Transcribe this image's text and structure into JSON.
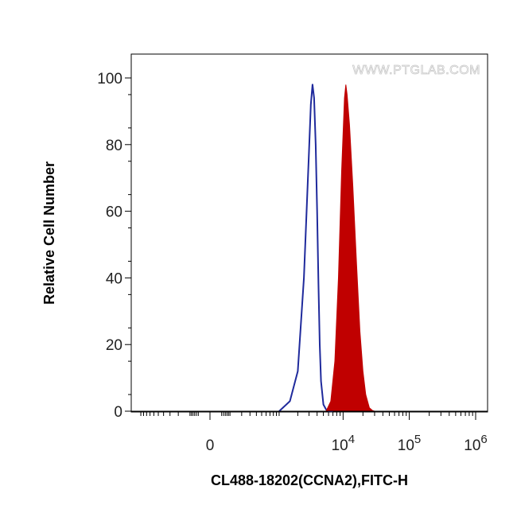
{
  "chart_data": {
    "type": "area",
    "title": "",
    "xlabel": "CL488-18202(CCNA2),FITC-H",
    "ylabel": "Relative Cell Number",
    "watermark": "WWW.PTGLAB.COM",
    "x_scale": "biexponential",
    "ylim": [
      0,
      100
    ],
    "y_ticks": [
      {
        "value": 0,
        "label": "0"
      },
      {
        "value": 20,
        "label": "20"
      },
      {
        "value": 40,
        "label": "40"
      },
      {
        "value": 60,
        "label": "60"
      },
      {
        "value": 80,
        "label": "80"
      },
      {
        "value": 100,
        "label": "100"
      }
    ],
    "x_ticks": [
      {
        "value": 0,
        "base": "0",
        "exp": ""
      },
      {
        "value": 10000,
        "base": "10",
        "exp": "4"
      },
      {
        "value": 100000,
        "base": "10",
        "exp": "5"
      },
      {
        "value": 1000000,
        "base": "10",
        "exp": "6"
      }
    ],
    "grid": false,
    "legend": "none",
    "series": [
      {
        "style": "outline",
        "color": "#1f2a9c",
        "x": [
          1000,
          1500,
          2000,
          2500,
          3000,
          3200,
          3400,
          3600,
          3800,
          4000,
          4200,
          4400,
          4600,
          5000,
          5500,
          6000,
          7000
        ],
        "y": [
          0,
          3,
          12,
          40,
          78,
          92,
          98,
          94,
          80,
          60,
          38,
          20,
          9,
          2,
          0.5,
          0,
          0
        ]
      },
      {
        "style": "filled",
        "color": "#c00000",
        "x": [
          5500,
          6500,
          7500,
          8500,
          9500,
          10500,
          11000,
          11500,
          12500,
          14000,
          16000,
          18000,
          20000,
          22000,
          25000,
          28000,
          30000
        ],
        "y": [
          0,
          3,
          15,
          40,
          72,
          94,
          98,
          95,
          86,
          68,
          44,
          24,
          12,
          5,
          1,
          0.2,
          0
        ]
      }
    ],
    "colors": {
      "outline_series": "#1f2a9c",
      "filled_series": "#c00000",
      "axis": "#000000"
    }
  }
}
